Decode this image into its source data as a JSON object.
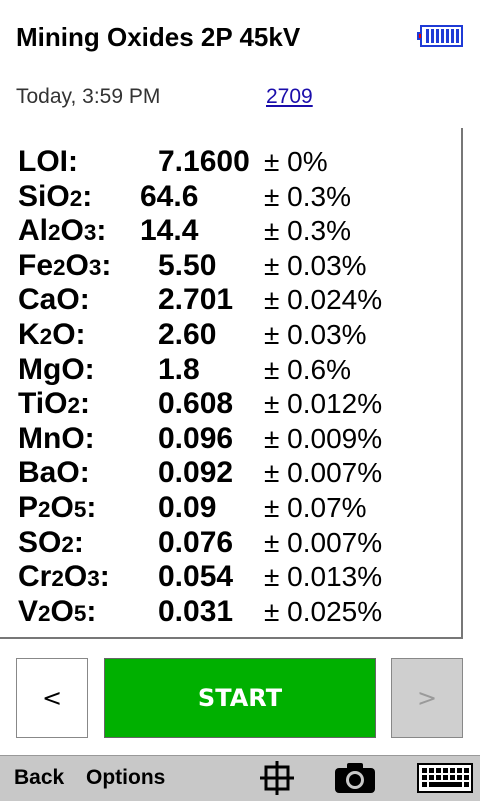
{
  "header": {
    "title": "Mining Oxides 2P 45kV",
    "battery_icon": "battery-icon"
  },
  "meta": {
    "time": "Today, 3:59 PM",
    "sample_id": "2709"
  },
  "results": [
    {
      "el": "LOI",
      "sub": [],
      "value": "7.1600",
      "error": "± 0%"
    },
    {
      "el": "SiO2",
      "value": "64.6",
      "error": "± 0.3%"
    },
    {
      "el": "Al2O3",
      "value": "14.4",
      "error": "± 0.3%"
    },
    {
      "el": "Fe2O3",
      "value": "5.50",
      "error": "± 0.03%"
    },
    {
      "el": "CaO",
      "value": "2.701",
      "error": "± 0.024%"
    },
    {
      "el": "K2O",
      "value": "2.60",
      "error": "± 0.03%"
    },
    {
      "el": "MgO",
      "value": "1.8",
      "error": "± 0.6%"
    },
    {
      "el": "TiO2",
      "value": "0.608",
      "error": "± 0.012%"
    },
    {
      "el": "MnO",
      "value": "0.096",
      "error": "± 0.009%"
    },
    {
      "el": "BaO",
      "value": "0.092",
      "error": "± 0.007%"
    },
    {
      "el": "P2O5",
      "value": "0.09",
      "error": "± 0.07%"
    },
    {
      "el": "SO2",
      "value": "0.076",
      "error": "± 0.007%"
    },
    {
      "el": "Cr2O3",
      "value": "0.054",
      "error": "± 0.013%"
    },
    {
      "el": "V2O5",
      "value": "0.031",
      "error": "± 0.025%"
    }
  ],
  "buttons": {
    "prev": "<",
    "start": "START",
    "next": ">"
  },
  "bottom_bar": {
    "back": "Back",
    "options": "Options",
    "icons": [
      "crosshair-icon",
      "camera-icon",
      "keyboard-icon"
    ]
  }
}
